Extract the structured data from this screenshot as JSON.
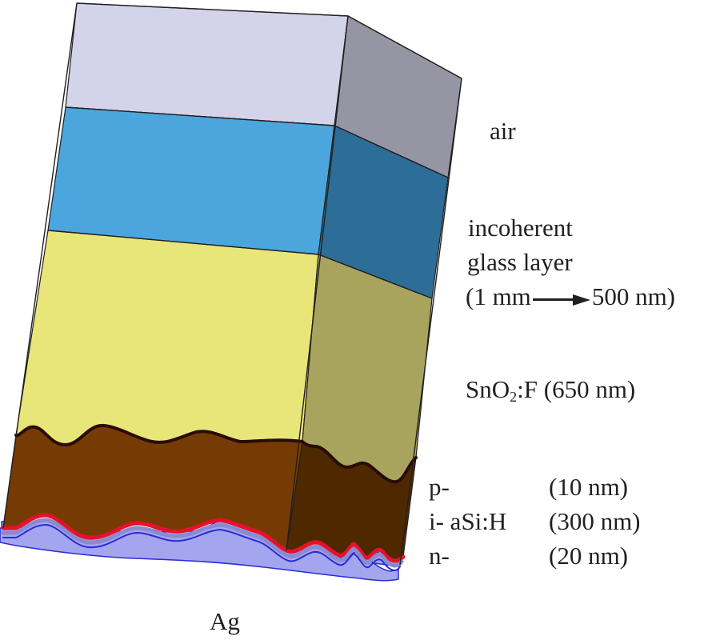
{
  "labels": {
    "air": "air",
    "glass_line1": "incoherent",
    "glass_line2": "glass layer",
    "glass_open": "(1 mm",
    "glass_close": "500 nm)",
    "sno2_prefix": "SnO",
    "sno2_sub": "2",
    "sno2_suffix": ":F (650 nm)",
    "p_name": "p-",
    "p_thickness": "(10 nm)",
    "i_name": "i- aSi:H",
    "i_thickness": "(300 nm)",
    "n_name": "n-",
    "n_thickness": "(20 nm)",
    "ag": "Ag"
  },
  "colors": {
    "air_front": "#d3d3e9",
    "air_side": "#9595a4",
    "glass_front": "#4aa6dc",
    "glass_side": "#2d6e98",
    "sno2_front": "#e8e679",
    "sno2_side": "#a8a45e",
    "asi_front": "#763b05",
    "asi_side": "#4e2900",
    "p_layer": "#e8102a",
    "n_layer": "#8a8ad0",
    "ag_fill": "#a3a6ee",
    "ag_edge": "#2b2bd6",
    "edge": "#231f20"
  }
}
